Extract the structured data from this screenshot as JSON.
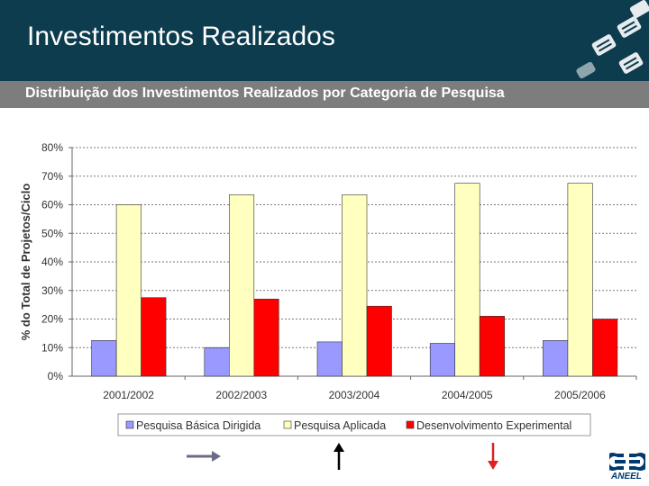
{
  "header": {
    "title": "Investimentos Realizados",
    "subtitle": "Distribuição dos Investimentos Realizados por Categoria de Pesquisa"
  },
  "logo": {
    "text": "ANEEL"
  },
  "colors": {
    "header_bg": "#0c3c4e",
    "subheader_bg": "#7d7d7d",
    "series_1": "#9999ff",
    "series_2": "#ffffc0",
    "series_3": "#ff0000"
  },
  "chart_data": {
    "type": "bar",
    "title": "",
    "xlabel": "",
    "ylabel": "% do Total de Projetos/Ciclo",
    "ylim": [
      0,
      80
    ],
    "yticks": [
      "0%",
      "10%",
      "20%",
      "30%",
      "40%",
      "50%",
      "60%",
      "70%",
      "80%"
    ],
    "categories": [
      "2001/2002",
      "2002/2003",
      "2003/2004",
      "2004/2005",
      "2005/2006"
    ],
    "series": [
      {
        "name": "Pesquisa Básica Dirigida",
        "values": [
          12.5,
          10,
          12,
          11.5,
          12.5
        ]
      },
      {
        "name": "Pesquisa Aplicada",
        "values": [
          60,
          63.5,
          63.5,
          67.5,
          67.5
        ]
      },
      {
        "name": "Desenvolvimento Experimental",
        "values": [
          27.5,
          27,
          24.5,
          21,
          20
        ]
      }
    ],
    "legend_position": "bottom",
    "grid": true
  }
}
